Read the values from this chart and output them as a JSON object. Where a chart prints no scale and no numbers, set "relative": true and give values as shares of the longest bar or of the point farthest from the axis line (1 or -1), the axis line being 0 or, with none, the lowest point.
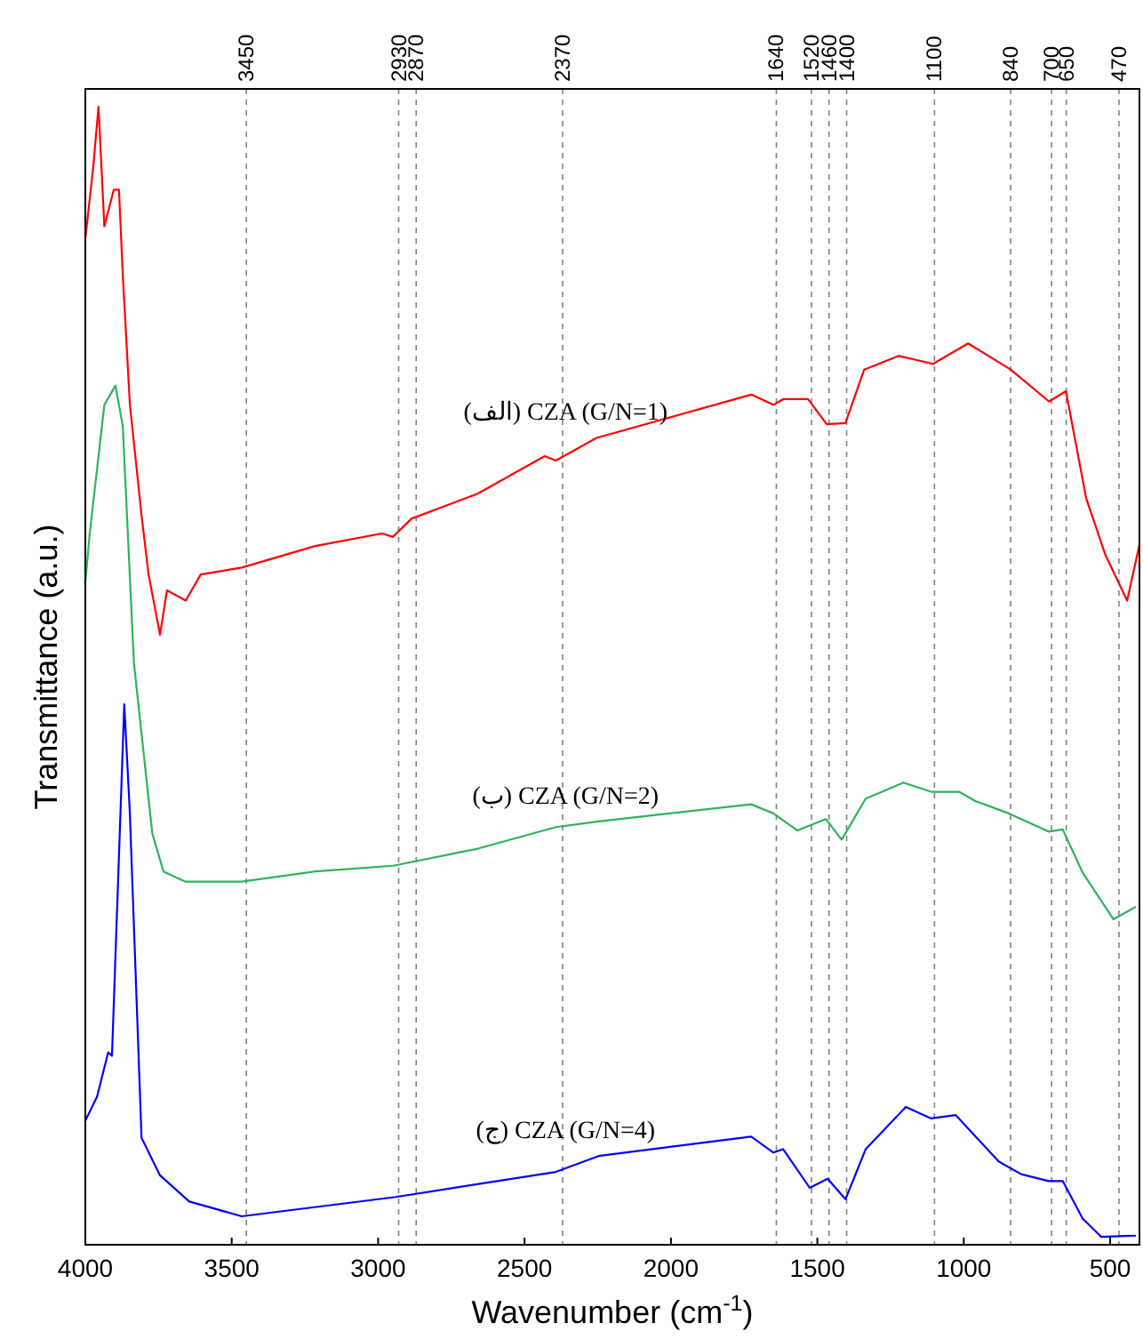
{
  "chart_data": {
    "type": "line",
    "relative": true,
    "xlabel": "Wavenumber (cm$^{-1}$)",
    "ylabel": "Transmittance (a.u.)",
    "xlim": [
      4000,
      400
    ],
    "xticks": [
      4000,
      3500,
      3000,
      2500,
      2000,
      1500,
      1000,
      500
    ],
    "grid": false,
    "marker": "none",
    "line_style": "solid",
    "ref_lines": [
      {
        "axis": "x",
        "value": 3450,
        "label": "3450",
        "color": "#808080",
        "line_style": "dashed"
      },
      {
        "axis": "x",
        "value": 2930,
        "label": "2930",
        "color": "#808080",
        "line_style": "dashed"
      },
      {
        "axis": "x",
        "value": 2870,
        "label": "2870",
        "color": "#808080",
        "line_style": "dashed"
      },
      {
        "axis": "x",
        "value": 2370,
        "label": "2370",
        "color": "#808080",
        "line_style": "dashed"
      },
      {
        "axis": "x",
        "value": 1640,
        "label": "1640",
        "color": "#808080",
        "line_style": "dashed"
      },
      {
        "axis": "x",
        "value": 1520,
        "label": "1520",
        "color": "#808080",
        "line_style": "dashed"
      },
      {
        "axis": "x",
        "value": 1460,
        "label": "1460",
        "color": "#808080",
        "line_style": "dashed"
      },
      {
        "axis": "x",
        "value": 1400,
        "label": "1400",
        "color": "#808080",
        "line_style": "dashed"
      },
      {
        "axis": "x",
        "value": 1100,
        "label": "1100",
        "color": "#808080",
        "line_style": "dashed"
      },
      {
        "axis": "x",
        "value": 840,
        "label": "840",
        "color": "#808080",
        "line_style": "dashed"
      },
      {
        "axis": "x",
        "value": 700,
        "label": "700",
        "color": "#808080",
        "line_style": "dashed"
      },
      {
        "axis": "x",
        "value": 650,
        "label": "650",
        "color": "#808080",
        "line_style": "dashed"
      },
      {
        "axis": "x",
        "value": 470,
        "label": "470",
        "color": "#808080",
        "line_style": "dashed"
      }
    ],
    "series": [
      {
        "name": "(الف) CZA (G/N=1)",
        "color": "#ff0000",
        "x": [
          4000,
          3973,
          3955,
          3935,
          3903,
          3885,
          3872,
          3848,
          3808,
          3784,
          3745,
          3721,
          3657,
          3606,
          3466,
          3215,
          2987,
          2950,
          2886,
          2660,
          2431,
          2393,
          2254,
          1726,
          1650,
          1617,
          1532,
          1468,
          1404,
          1340,
          1222,
          1105,
          985,
          840,
          709,
          651,
          582,
          516,
          442,
          400
        ],
        "values": [
          0.884,
          0.947,
          1,
          0.895,
          0.927,
          0.927,
          0.852,
          0.739,
          0.641,
          0.589,
          0.536,
          0.575,
          0.566,
          0.589,
          0.595,
          0.614,
          0.625,
          0.622,
          0.638,
          0.66,
          0.693,
          0.689,
          0.709,
          0.747,
          0.738,
          0.743,
          0.743,
          0.721,
          0.722,
          0.769,
          0.781,
          0.774,
          0.792,
          0.769,
          0.741,
          0.75,
          0.656,
          0.606,
          0.566,
          0.615
        ]
      },
      {
        "name": "(ب) CZA (G/N=2)",
        "color": "#2db35a",
        "x": [
          4000,
          3985,
          3935,
          3897,
          3872,
          3834,
          3771,
          3733,
          3657,
          3466,
          3215,
          2950,
          2660,
          2393,
          2247,
          1726,
          1650,
          1568,
          1471,
          1417,
          1335,
          1206,
          1111,
          1016,
          962,
          846,
          710,
          662,
          594,
          489,
          412
        ],
        "values": [
          0.582,
          0.625,
          0.738,
          0.755,
          0.719,
          0.511,
          0.361,
          0.328,
          0.319,
          0.319,
          0.328,
          0.333,
          0.348,
          0.367,
          0.372,
          0.387,
          0.379,
          0.364,
          0.374,
          0.356,
          0.392,
          0.406,
          0.398,
          0.398,
          0.39,
          0.379,
          0.363,
          0.365,
          0.327,
          0.286,
          0.297
        ]
      },
      {
        "name": "(ج) CZA (G/N=4)",
        "color": "#0000ff",
        "x": [
          4000,
          3960,
          3922,
          3909,
          3867,
          3848,
          3808,
          3745,
          3645,
          3466,
          2939,
          2393,
          2247,
          1726,
          1650,
          1617,
          1526,
          1465,
          1404,
          1335,
          1198,
          1111,
          1028,
          880,
          804,
          710,
          662,
          594,
          531,
          412
        ],
        "values": [
          0.109,
          0.13,
          0.169,
          0.166,
          0.475,
          0.38,
          0.094,
          0.061,
          0.038,
          0.025,
          0.042,
          0.064,
          0.078,
          0.095,
          0.081,
          0.084,
          0.05,
          0.058,
          0.04,
          0.084,
          0.121,
          0.111,
          0.114,
          0.073,
          0.062,
          0.056,
          0.056,
          0.023,
          0.007,
          0.008
        ]
      }
    ]
  }
}
